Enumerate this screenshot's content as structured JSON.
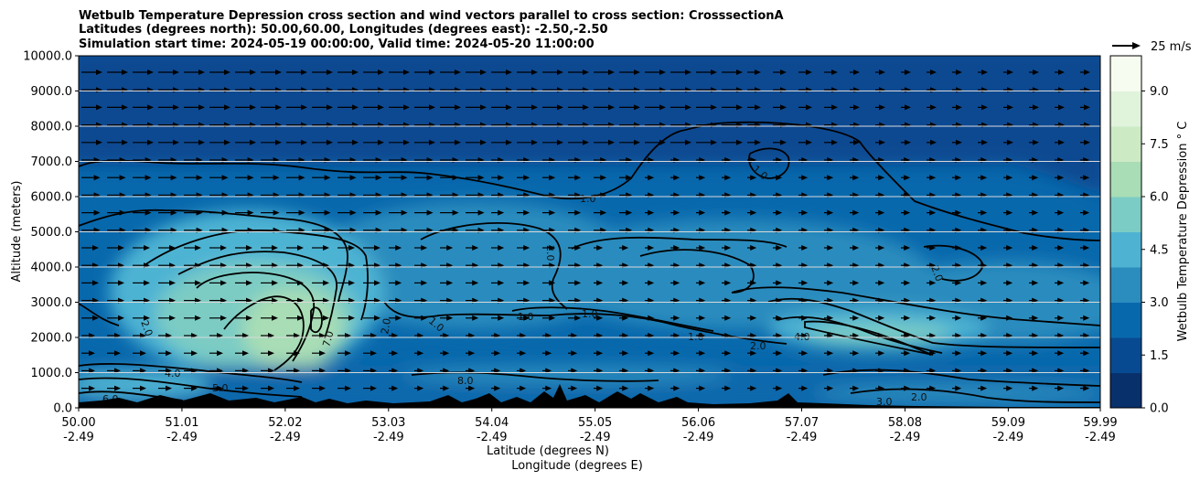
{
  "chart_data": {
    "type": "contour",
    "title_lines": [
      "Wetbulb Temperature Depression cross section and wind vectors parallel to cross section: CrosssectionA",
      "Latitudes (degrees north): 50.00,60.00, Longitudes (degrees east): -2.50,-2.50",
      "Simulation start time: 2024-05-19 00:00:00, Valid time: 2024-05-20 11:00:00"
    ],
    "xlabel_1": "Latitude (degrees N)",
    "xlabel_2": "Longitude (degrees E)",
    "ylabel": "Altitude (meters)",
    "ylim": [
      0,
      10000
    ],
    "xlim": [
      50.0,
      59.99
    ],
    "x_ticks": [
      {
        "lat": "50.00",
        "lon": "-2.49"
      },
      {
        "lat": "51.01",
        "lon": "-2.49"
      },
      {
        "lat": "52.02",
        "lon": "-2.49"
      },
      {
        "lat": "53.03",
        "lon": "-2.49"
      },
      {
        "lat": "54.04",
        "lon": "-2.49"
      },
      {
        "lat": "55.05",
        "lon": "-2.49"
      },
      {
        "lat": "56.06",
        "lon": "-2.49"
      },
      {
        "lat": "57.07",
        "lon": "-2.49"
      },
      {
        "lat": "58.08",
        "lon": "-2.49"
      },
      {
        "lat": "59.09",
        "lon": "-2.49"
      },
      {
        "lat": "59.99",
        "lon": "-2.49"
      }
    ],
    "y_ticks": [
      "0.0",
      "1000.0",
      "2000.0",
      "3000.0",
      "4000.0",
      "5000.0",
      "6000.0",
      "7000.0",
      "8000.0",
      "9000.0",
      "10000.0"
    ],
    "grid": "horizontal",
    "colorbar": {
      "label": "Wetbulb Temperature Depression ° C",
      "ticks": [
        "0.0",
        "1.5",
        "3.0",
        "4.5",
        "6.0",
        "7.5",
        "9.0"
      ],
      "range": [
        0,
        10
      ],
      "colormap": "GnBu_r",
      "colors": [
        "#08306b",
        "#084a91",
        "#0868ac",
        "#2b8cbe",
        "#4eb3d3",
        "#7bccc4",
        "#a8ddb5",
        "#ccebc5",
        "#e0f3db",
        "#f7fcf0"
      ]
    },
    "quiver_key": {
      "label": "25 m/s",
      "value": 25
    },
    "contour_labels": [
      "1.0",
      "1.0",
      "1.0",
      "1.0",
      "1.0",
      "1.0",
      "2.0",
      "2.0",
      "2.0",
      "2.0",
      "2.0",
      "2.0",
      "3.0",
      "4.0",
      "4.0",
      "5.0",
      "6.0",
      "7.0",
      "8.0"
    ],
    "terrain_color": "#000000"
  }
}
